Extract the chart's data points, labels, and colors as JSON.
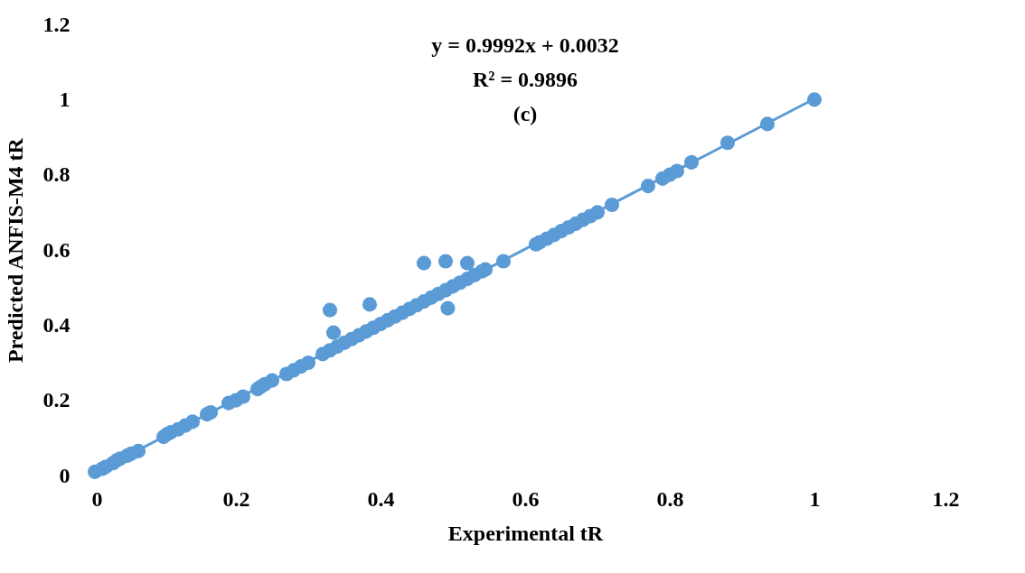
{
  "chart_data": {
    "type": "scatter",
    "xlabel": "Experimental tR",
    "ylabel": "Predicted ANFIS-M4 tR",
    "annotations": [
      "y = 0.9992x + 0.0032",
      "R² = 0.9896",
      "(c)"
    ],
    "xlim": [
      0,
      1.2
    ],
    "ylim": [
      0,
      1.2
    ],
    "xticks": [
      0,
      0.2,
      0.4,
      0.6,
      0.8,
      1,
      1.2
    ],
    "yticks": [
      0,
      0.2,
      0.4,
      0.6,
      0.8,
      1,
      1.2
    ],
    "grid": false,
    "series": [
      {
        "color": "#5b9bd5",
        "marker": "circle",
        "x": [
          0.005,
          0.015,
          0.02,
          0.03,
          0.035,
          0.04,
          0.05,
          0.055,
          0.065,
          0.1,
          0.105,
          0.11,
          0.12,
          0.13,
          0.14,
          0.16,
          0.165,
          0.19,
          0.2,
          0.21,
          0.23,
          0.235,
          0.24,
          0.25,
          0.27,
          0.28,
          0.29,
          0.3,
          0.32,
          0.33,
          0.34,
          0.35,
          0.36,
          0.37,
          0.38,
          0.39,
          0.4,
          0.41,
          0.42,
          0.43,
          0.44,
          0.45,
          0.46,
          0.47,
          0.48,
          0.49,
          0.5,
          0.51,
          0.52,
          0.53,
          0.54,
          0.545,
          0.57,
          0.615,
          0.62,
          0.63,
          0.64,
          0.65,
          0.66,
          0.67,
          0.68,
          0.69,
          0.7,
          0.72,
          0.77,
          0.79,
          0.8,
          0.81,
          0.83,
          0.88,
          0.935,
          1.0,
          0.33,
          0.335,
          0.385,
          0.46,
          0.49,
          0.52,
          0.493
        ],
        "values": [
          0.01,
          0.018,
          0.023,
          0.033,
          0.04,
          0.045,
          0.053,
          0.058,
          0.065,
          0.103,
          0.11,
          0.115,
          0.123,
          0.133,
          0.143,
          0.163,
          0.168,
          0.193,
          0.2,
          0.21,
          0.23,
          0.237,
          0.243,
          0.253,
          0.27,
          0.28,
          0.29,
          0.3,
          0.323,
          0.333,
          0.343,
          0.353,
          0.363,
          0.373,
          0.383,
          0.393,
          0.403,
          0.413,
          0.423,
          0.433,
          0.443,
          0.453,
          0.463,
          0.473,
          0.483,
          0.493,
          0.503,
          0.513,
          0.523,
          0.533,
          0.543,
          0.548,
          0.57,
          0.615,
          0.62,
          0.63,
          0.64,
          0.65,
          0.66,
          0.67,
          0.68,
          0.69,
          0.7,
          0.72,
          0.77,
          0.79,
          0.8,
          0.81,
          0.833,
          0.885,
          0.935,
          1.0,
          0.44,
          0.38,
          0.455,
          0.565,
          0.57,
          0.565,
          0.445
        ]
      },
      {
        "type": "line",
        "color": "#5b9bd5",
        "x": [
          0.005,
          1.0
        ],
        "values": [
          0.008,
          1.002
        ]
      }
    ]
  }
}
